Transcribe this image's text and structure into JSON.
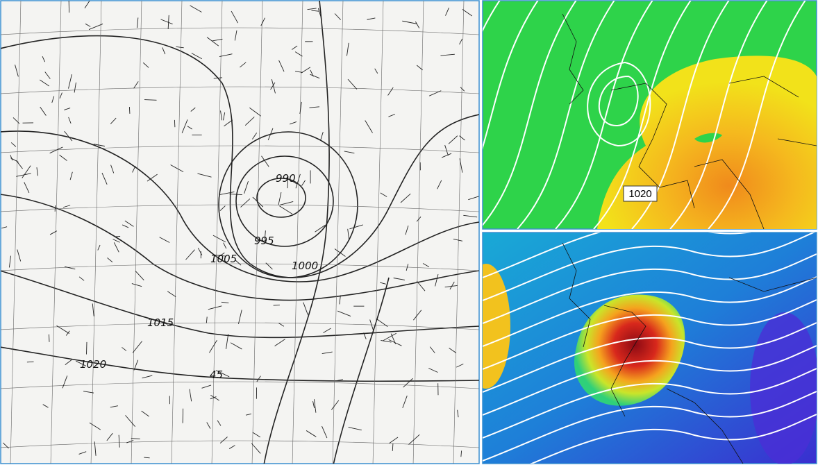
{
  "left_map": {
    "isobar_labels": [
      "990",
      "995",
      "1000",
      "1005",
      "1015",
      "1020"
    ],
    "latitude_label": "45"
  },
  "top_right_map": {
    "isobar_label": "1020"
  }
}
